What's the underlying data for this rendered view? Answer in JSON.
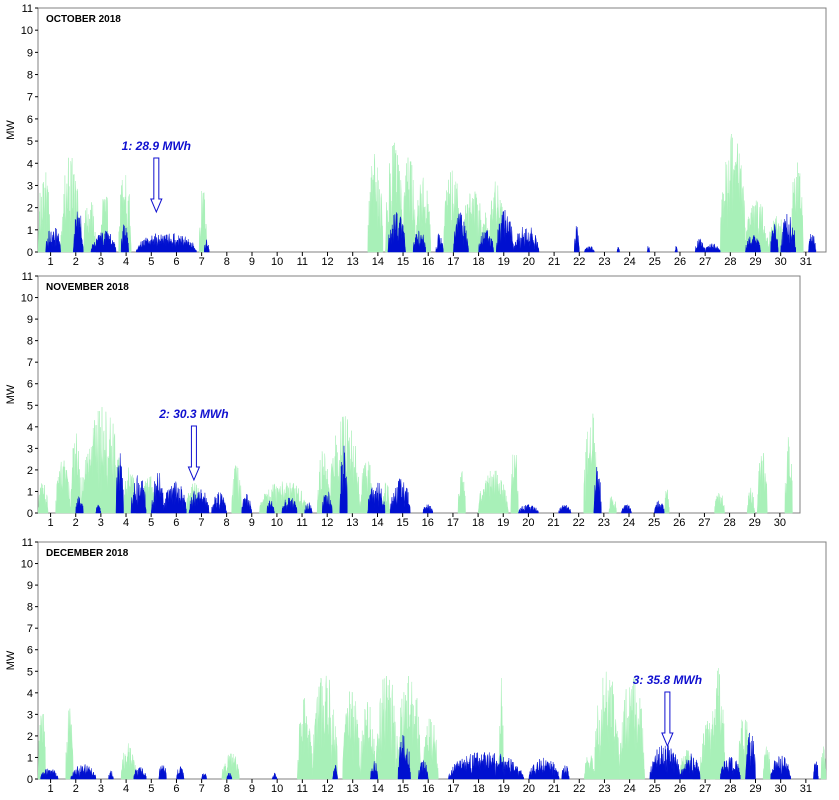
{
  "chart_data": [
    {
      "type": "area",
      "title": "OCTOBER 2018",
      "ylabel": "MW",
      "ylim": [
        0,
        11
      ],
      "xlim": [
        0.5,
        31.8
      ],
      "days": 31,
      "x_ticks": [
        "1",
        "2",
        "3",
        "4",
        "5",
        "6",
        "7",
        "8",
        "9",
        "10",
        "11",
        "12",
        "13",
        "14",
        "15",
        "16",
        "17",
        "18",
        "19",
        "20",
        "21",
        "22",
        "23",
        "24",
        "25",
        "26",
        "27",
        "28",
        "29",
        "30",
        "31"
      ],
      "y_ticks": [
        "0",
        "1",
        "2",
        "3",
        "4",
        "5",
        "6",
        "7",
        "8",
        "9",
        "10",
        "11"
      ],
      "annotation": {
        "text": "1: 28.9 MWh",
        "day": 5.2
      },
      "series": [
        {
          "name": "green",
          "color": "#a8f0b8",
          "bursts": [
            [
              0.5,
              1.0,
              3.8
            ],
            [
              1.4,
              2.2,
              4.4
            ],
            [
              2.3,
              2.8,
              2.5
            ],
            [
              3.0,
              3.3,
              3.5
            ],
            [
              3.7,
              4.2,
              3.8
            ],
            [
              6.9,
              7.2,
              2.9
            ],
            [
              13.6,
              14.2,
              4.6
            ],
            [
              14.3,
              15.0,
              5.0
            ],
            [
              15.0,
              15.5,
              4.6
            ],
            [
              15.5,
              16.1,
              3.5
            ],
            [
              16.6,
              17.3,
              3.8
            ],
            [
              17.3,
              18.4,
              2.9
            ],
            [
              18.4,
              19.0,
              3.4
            ],
            [
              27.6,
              28.6,
              5.4
            ],
            [
              28.6,
              29.5,
              2.4
            ],
            [
              29.5,
              30.2,
              1.8
            ],
            [
              30.4,
              30.9,
              4.2
            ]
          ]
        },
        {
          "name": "blue",
          "color": "#0010d0",
          "bursts": [
            [
              0.8,
              1.4,
              1.2
            ],
            [
              1.9,
              2.3,
              2.2
            ],
            [
              2.6,
              3.6,
              1.0
            ],
            [
              3.8,
              4.1,
              1.4
            ],
            [
              4.4,
              6.8,
              0.9
            ],
            [
              7.1,
              7.3,
              0.6
            ],
            [
              14.4,
              15.1,
              1.8
            ],
            [
              15.4,
              15.9,
              1.0
            ],
            [
              16.3,
              16.6,
              0.9
            ],
            [
              17.0,
              17.6,
              1.8
            ],
            [
              18.0,
              18.6,
              1.0
            ],
            [
              18.7,
              19.4,
              1.9
            ],
            [
              19.4,
              20.4,
              1.2
            ],
            [
              21.8,
              22.0,
              1.2
            ],
            [
              22.2,
              22.6,
              0.3
            ],
            [
              23.5,
              23.6,
              0.3
            ],
            [
              24.7,
              24.8,
              0.3
            ],
            [
              25.8,
              25.9,
              0.3
            ],
            [
              26.6,
              27.0,
              0.6
            ],
            [
              27.0,
              27.6,
              0.4
            ],
            [
              28.6,
              29.2,
              0.8
            ],
            [
              29.6,
              29.9,
              1.4
            ],
            [
              30.0,
              30.6,
              2.0
            ],
            [
              31.1,
              31.4,
              0.9
            ]
          ]
        }
      ]
    },
    {
      "type": "area",
      "title": "NOVEMBER 2018",
      "ylabel": "MW",
      "ylim": [
        0,
        11
      ],
      "xlim": [
        0.5,
        30.8
      ],
      "days": 30,
      "x_ticks": [
        "1",
        "2",
        "3",
        "4",
        "5",
        "6",
        "7",
        "8",
        "9",
        "10",
        "11",
        "12",
        "13",
        "14",
        "15",
        "16",
        "17",
        "18",
        "19",
        "20",
        "21",
        "22",
        "23",
        "24",
        "25",
        "26",
        "27",
        "28",
        "29",
        "30"
      ],
      "y_ticks": [
        "0",
        "1",
        "2",
        "3",
        "4",
        "5",
        "6",
        "7",
        "8",
        "9",
        "10",
        "11"
      ],
      "annotation": {
        "text": "2: 30.3 MWh",
        "day": 6.7
      },
      "series": [
        {
          "name": "green",
          "color": "#a8f0b8",
          "bursts": [
            [
              0.5,
              0.9,
              1.5
            ],
            [
              1.2,
              1.8,
              2.5
            ],
            [
              1.8,
              2.2,
              3.8
            ],
            [
              2.2,
              3.9,
              5.0
            ],
            [
              3.9,
              4.4,
              2.2
            ],
            [
              4.6,
              5.2,
              1.8
            ],
            [
              6.4,
              7.0,
              1.5
            ],
            [
              8.2,
              8.6,
              2.3
            ],
            [
              9.3,
              11.3,
              1.5
            ],
            [
              11.6,
              12.1,
              3.0
            ],
            [
              12.1,
              13.3,
              4.7
            ],
            [
              13.3,
              13.8,
              3.0
            ],
            [
              14.2,
              14.5,
              1.5
            ],
            [
              17.2,
              17.5,
              2.0
            ],
            [
              18.0,
              19.2,
              2.0
            ],
            [
              19.3,
              19.6,
              3.2
            ],
            [
              22.2,
              22.8,
              5.0
            ],
            [
              23.2,
              23.5,
              1.0
            ],
            [
              25.4,
              25.6,
              1.2
            ],
            [
              27.4,
              27.8,
              1.0
            ],
            [
              28.7,
              29.0,
              1.2
            ],
            [
              29.1,
              29.5,
              3.0
            ],
            [
              30.2,
              30.5,
              3.6
            ]
          ]
        },
        {
          "name": "blue",
          "color": "#0010d0",
          "bursts": [
            [
              2.0,
              2.3,
              0.8
            ],
            [
              2.8,
              3.0,
              0.4
            ],
            [
              3.6,
              3.9,
              2.9
            ],
            [
              4.2,
              4.8,
              1.8
            ],
            [
              5.0,
              5.5,
              2.0
            ],
            [
              5.5,
              6.4,
              1.5
            ],
            [
              6.5,
              7.3,
              1.2
            ],
            [
              7.4,
              8.0,
              1.0
            ],
            [
              8.6,
              9.0,
              0.9
            ],
            [
              9.6,
              9.9,
              0.6
            ],
            [
              10.2,
              10.8,
              0.8
            ],
            [
              11.1,
              11.4,
              0.5
            ],
            [
              11.8,
              12.2,
              1.2
            ],
            [
              12.5,
              12.8,
              3.3
            ],
            [
              13.6,
              14.3,
              1.5
            ],
            [
              14.5,
              15.3,
              1.6
            ],
            [
              15.8,
              16.2,
              0.4
            ],
            [
              19.6,
              20.4,
              0.4
            ],
            [
              21.2,
              21.7,
              0.4
            ],
            [
              22.6,
              22.9,
              2.2
            ],
            [
              23.7,
              24.1,
              0.4
            ],
            [
              25.0,
              25.4,
              0.6
            ]
          ]
        }
      ]
    },
    {
      "type": "area",
      "title": "DECEMBER 2018",
      "ylabel": "MW",
      "ylim": [
        0,
        11
      ],
      "xlim": [
        0.5,
        31.8
      ],
      "days": 31,
      "x_ticks": [
        "1",
        "2",
        "3",
        "4",
        "5",
        "6",
        "7",
        "8",
        "9",
        "10",
        "11",
        "12",
        "13",
        "14",
        "15",
        "16",
        "17",
        "18",
        "19",
        "20",
        "21",
        "22",
        "23",
        "24",
        "25",
        "26",
        "27",
        "28",
        "29",
        "30",
        "31"
      ],
      "y_ticks": [
        "0",
        "1",
        "2",
        "3",
        "4",
        "5",
        "6",
        "7",
        "8",
        "9",
        "10",
        "11"
      ],
      "annotation": {
        "text": "3: 35.8 MWh",
        "day": 25.5
      },
      "series": [
        {
          "name": "green",
          "color": "#a8f0b8",
          "bursts": [
            [
              0.5,
              0.8,
              3.8
            ],
            [
              1.6,
              1.9,
              3.4
            ],
            [
              3.8,
              4.4,
              1.8
            ],
            [
              7.8,
              8.5,
              1.3
            ],
            [
              10.8,
              11.4,
              3.8
            ],
            [
              11.4,
              12.4,
              5.0
            ],
            [
              12.6,
              13.3,
              4.2
            ],
            [
              13.3,
              13.9,
              3.6
            ],
            [
              13.9,
              14.8,
              5.2
            ],
            [
              14.8,
              15.7,
              5.3
            ],
            [
              15.8,
              16.4,
              3.2
            ],
            [
              18.8,
              19.0,
              5.0
            ],
            [
              22.2,
              22.6,
              1.2
            ],
            [
              22.6,
              23.6,
              5.2
            ],
            [
              23.6,
              24.6,
              5.0
            ],
            [
              26.0,
              26.5,
              1.4
            ],
            [
              26.8,
              27.4,
              2.8
            ],
            [
              27.2,
              27.8,
              5.3
            ],
            [
              28.3,
              28.8,
              3.0
            ],
            [
              29.3,
              29.6,
              1.6
            ],
            [
              31.6,
              31.8,
              1.6
            ]
          ]
        },
        {
          "name": "blue",
          "color": "#0010d0",
          "bursts": [
            [
              0.6,
              1.3,
              0.5
            ],
            [
              1.8,
              2.8,
              0.7
            ],
            [
              3.3,
              3.5,
              0.4
            ],
            [
              4.3,
              4.8,
              0.6
            ],
            [
              5.3,
              5.6,
              0.8
            ],
            [
              6.0,
              6.3,
              0.6
            ],
            [
              7.0,
              7.2,
              0.3
            ],
            [
              8.0,
              8.2,
              0.3
            ],
            [
              9.8,
              10.0,
              0.3
            ],
            [
              12.2,
              12.4,
              0.7
            ],
            [
              13.7,
              14.0,
              0.9
            ],
            [
              14.8,
              15.3,
              2.1
            ],
            [
              15.6,
              16.0,
              0.9
            ],
            [
              16.8,
              19.8,
              1.3
            ],
            [
              20.0,
              21.2,
              1.0
            ],
            [
              21.3,
              21.6,
              0.7
            ],
            [
              24.8,
              26.0,
              1.7
            ],
            [
              26.0,
              26.8,
              1.2
            ],
            [
              27.6,
              28.4,
              1.1
            ],
            [
              28.6,
              29.0,
              2.2
            ],
            [
              29.6,
              30.4,
              1.1
            ],
            [
              31.3,
              31.5,
              1.0
            ]
          ]
        }
      ]
    }
  ]
}
